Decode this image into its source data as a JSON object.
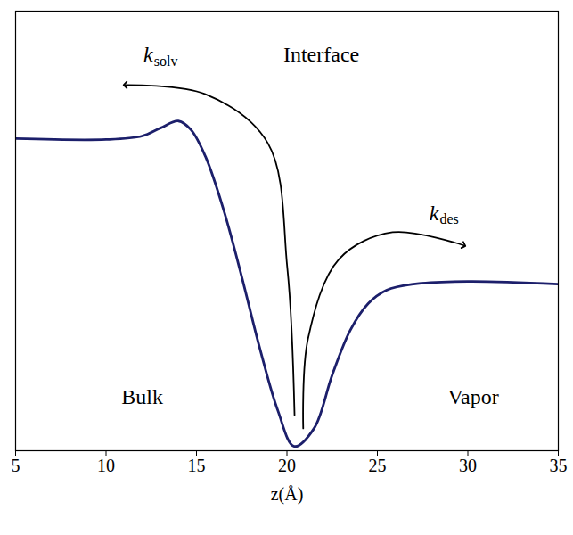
{
  "chart_data": {
    "type": "line",
    "x_label": "z(Å)",
    "x": [
      5,
      10,
      12,
      13,
      14,
      14.7,
      15.5,
      16.5,
      17.5,
      18.5,
      19.5,
      20.4,
      21.5,
      22.5,
      23.5,
      24.5,
      25.5,
      27,
      30,
      35
    ],
    "values": [
      7.1,
      7.08,
      7.16,
      7.34,
      7.5,
      7.3,
      6.69,
      5.48,
      3.96,
      2.33,
      0.91,
      0.1,
      0.51,
      1.72,
      2.74,
      3.35,
      3.65,
      3.79,
      3.85,
      3.79
    ],
    "color": "#1c1f6b",
    "xlim": [
      5,
      35
    ],
    "ylim": [
      0,
      10
    ],
    "xticks": [
      5,
      10,
      15,
      20,
      25,
      30,
      35
    ],
    "tick_labels": "x",
    "annotations": [
      {
        "text": "Interface",
        "x": 21.9,
        "y": 9.0,
        "bold": true
      },
      {
        "text": "Bulk",
        "x": 12.0,
        "y": 1.22,
        "bold": true
      },
      {
        "text": "Vapor",
        "x": 30.3,
        "y": 1.22,
        "bold": true
      },
      {
        "text": "k",
        "subscript": "solv",
        "x": 12.6,
        "y": 9.0,
        "bold": false
      },
      {
        "text": "k",
        "subscript": "des",
        "x": 28.4,
        "y": 5.4,
        "bold": false
      }
    ]
  }
}
